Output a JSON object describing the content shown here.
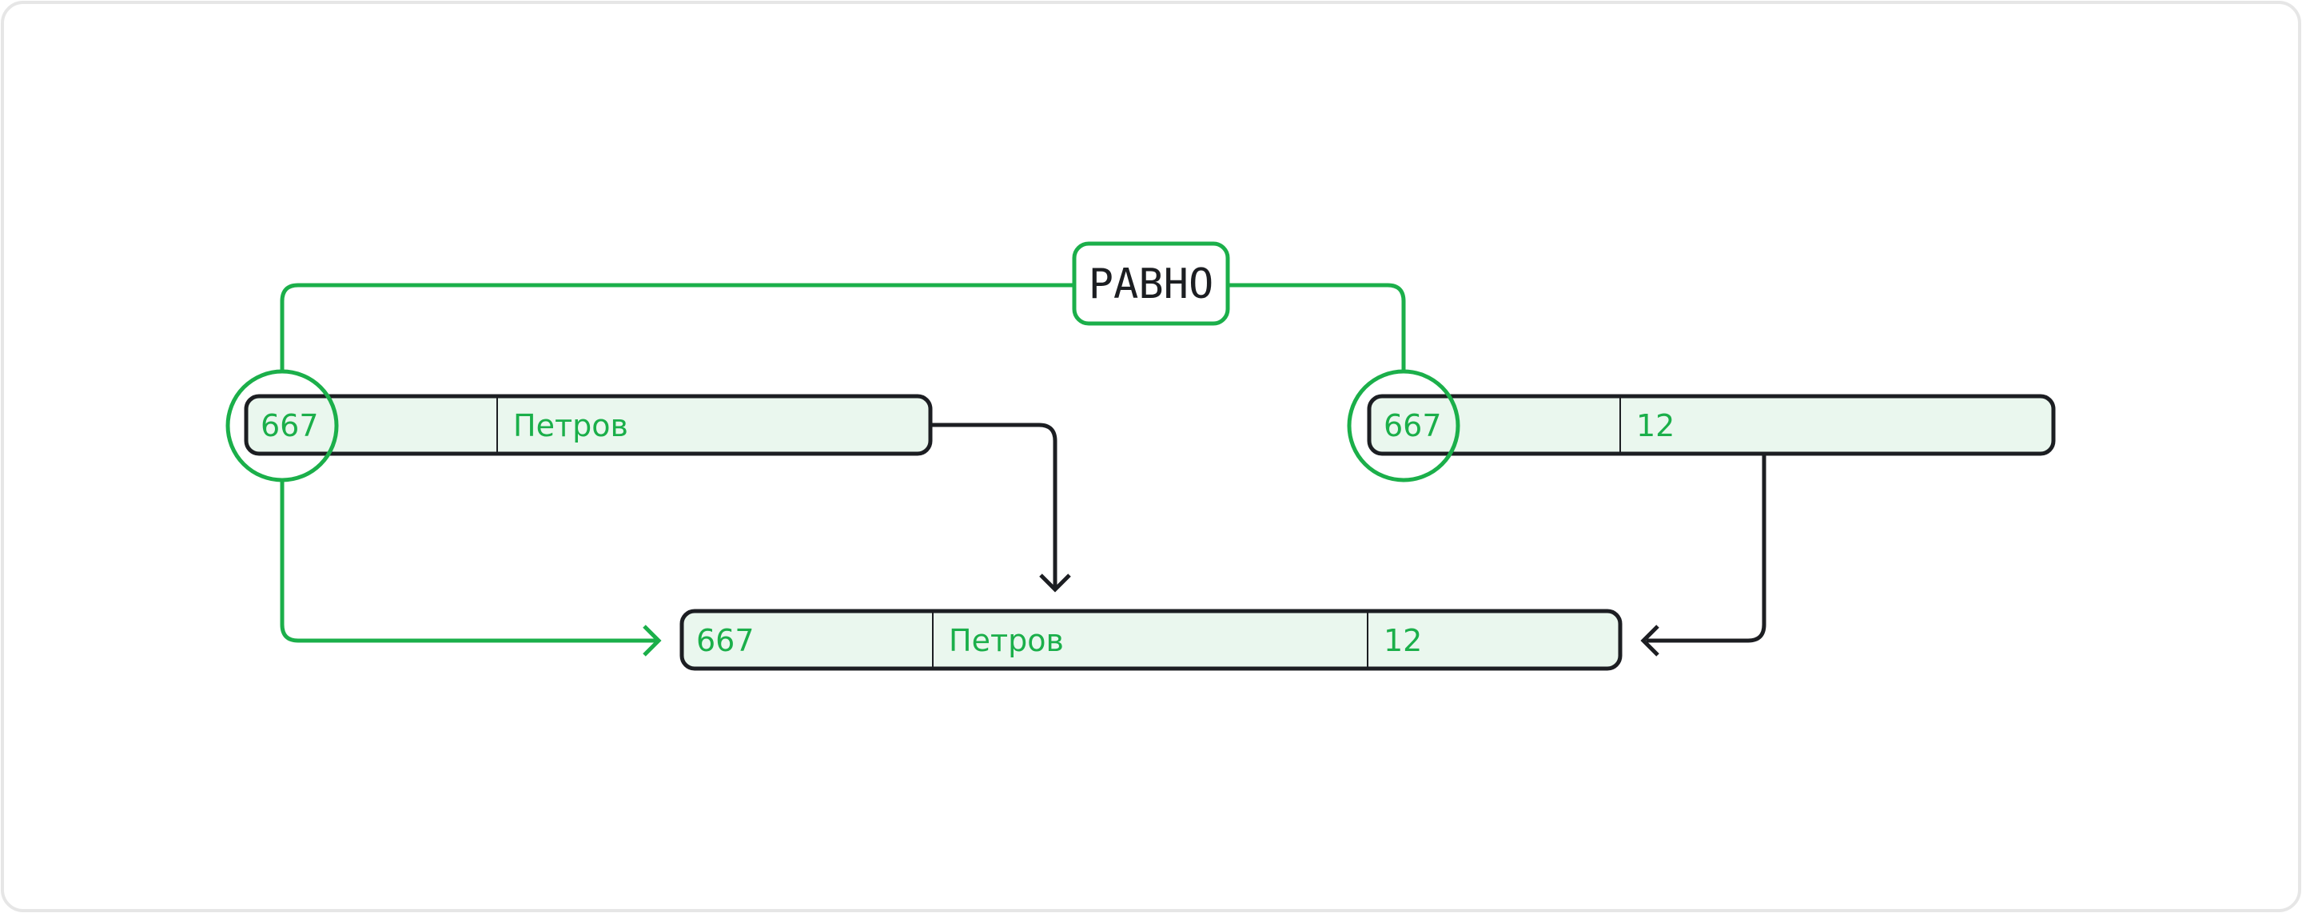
{
  "diagram": {
    "equals_label": "РАВНО",
    "left_table": {
      "cells": [
        "667",
        "Петров"
      ]
    },
    "right_table": {
      "cells": [
        "667",
        "12"
      ]
    },
    "result_table": {
      "cells": [
        "667",
        "Петров",
        "12"
      ]
    }
  },
  "colors": {
    "green": "#1BAF4A",
    "dark": "#1C1E22",
    "row_fill": "#EAF7EE",
    "frame": "#E6E6E6"
  }
}
